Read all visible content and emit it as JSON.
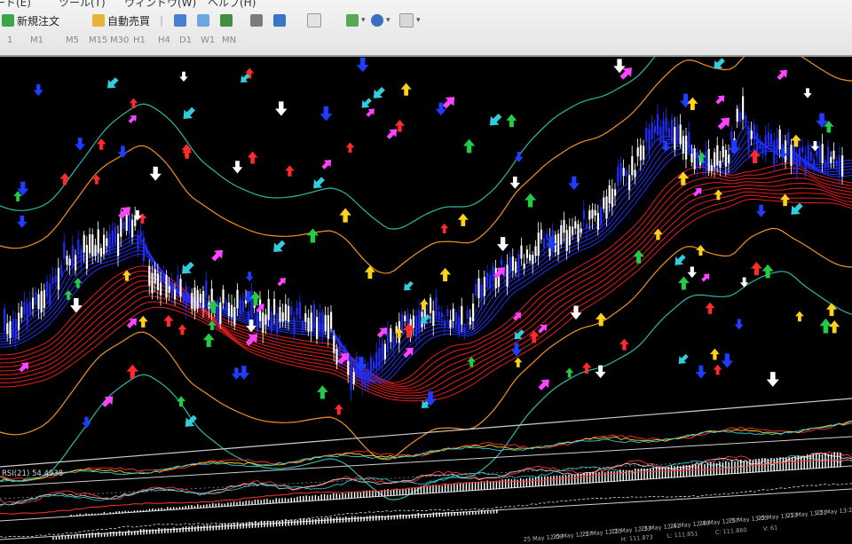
{
  "menu": [
    "ード(E)",
    "ツール(T)",
    "ウィンドウ(W)",
    "ヘルプ(H)"
  ],
  "toolbar": {
    "new_order_label": "新規注文",
    "auto_trade_label": "自動売買"
  },
  "timeframes": [
    "1",
    "M1",
    "M5",
    "M15",
    "M30",
    "H1",
    "H4",
    "D1",
    "W1",
    "MN"
  ],
  "indicators": {
    "rsi_label": "RSI(21) 54.4938"
  },
  "time_axis": [
    "25 May 12:09",
    "25 May 12:17",
    "25 May 12:25",
    "25 May 12:33",
    "25 May 12:41",
    "25 May 12:49",
    "25 May 12:57",
    "25 May 13:05",
    "25 May 13:13",
    "25 May 13:21",
    "25 May 13:29"
  ],
  "status_bar": {
    "values": [
      "H: 111.873",
      "L: 111.851",
      "C: 111.860",
      "V: 61"
    ]
  },
  "colors": {
    "background": "#000000",
    "bull_candle": "#ffffff",
    "bear_candle": "#1e2cff",
    "ma_fast": "#2233ff",
    "ma_slow": "#ff2020",
    "band_outer": "#2fb7a8",
    "band_mid": "#f5921e",
    "arrow_up_yellow": "#ffd21a",
    "arrow_up_green": "#22cc44",
    "arrow_up_red": "#ff2a2a",
    "arrow_down_white": "#ffffff",
    "arrow_down_blue": "#1f3cff",
    "arrow_magenta": "#ff44ff",
    "arrow_cyan": "#33ccdd"
  }
}
